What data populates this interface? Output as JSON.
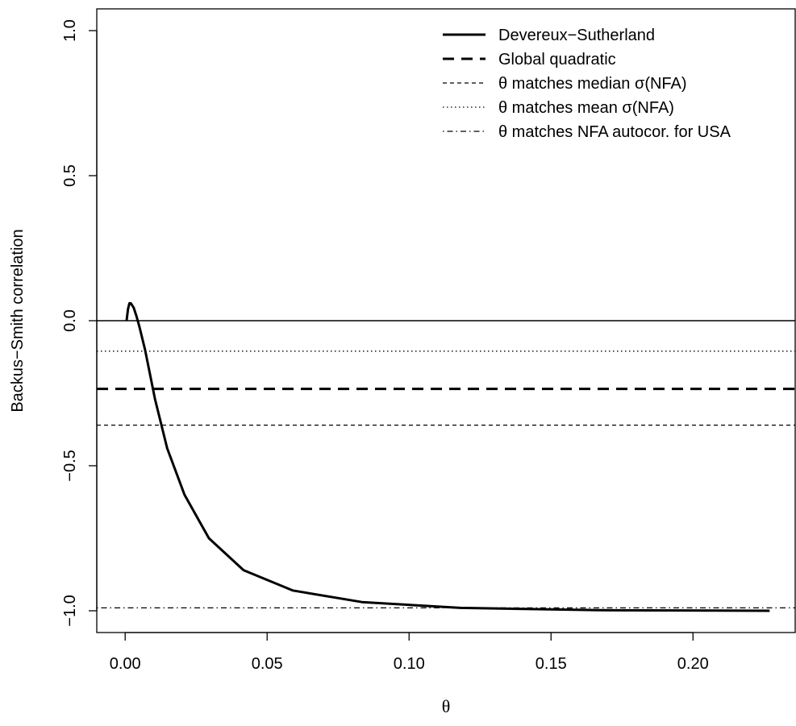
{
  "chart_data": {
    "type": "line",
    "title": "",
    "xlabel": "θ",
    "ylabel": "Backus−Smith correlation",
    "xlim": [
      -0.01,
      0.236
    ],
    "ylim": [
      -1.075,
      1.075
    ],
    "x_ticks": [
      0.0,
      0.05,
      0.1,
      0.15,
      0.2
    ],
    "x_tick_labels": [
      "0.00",
      "0.05",
      "0.10",
      "0.15",
      "0.20"
    ],
    "y_ticks": [
      -1.0,
      -0.5,
      0.0,
      0.5,
      1.0
    ],
    "y_tick_labels": [
      "−1.0",
      "−0.5",
      "0.0",
      "0.5",
      "1.0"
    ],
    "grid": false,
    "legend_position": "top-right",
    "series": [
      {
        "name": "Devereux−Sutherland",
        "style": "solid-thick",
        "color": "#000000",
        "x": [
          0.0005,
          0.001,
          0.0015,
          0.002,
          0.003,
          0.004,
          0.005,
          0.007,
          0.0105,
          0.0148,
          0.0209,
          0.0295,
          0.0417,
          0.059,
          0.0834,
          0.118,
          0.167,
          0.227
        ],
        "y": [
          0.0,
          0.04,
          0.06,
          0.06,
          0.045,
          0.015,
          -0.02,
          -0.1,
          -0.27,
          -0.44,
          -0.6,
          -0.75,
          -0.86,
          -0.93,
          -0.97,
          -0.99,
          -0.998,
          -1.0
        ]
      },
      {
        "name": "Global quadratic",
        "style": "dashed-thick",
        "color": "#000000",
        "hline": -0.235
      },
      {
        "name": "θ matches median σ(NFA)",
        "style": "dashed",
        "color": "#000000",
        "hline": -0.36
      },
      {
        "name": "θ matches mean σ(NFA)",
        "style": "dotted",
        "color": "#000000",
        "hline": -0.105
      },
      {
        "name": "θ matches NFA autocor. for USA",
        "style": "dotdash",
        "color": "#000000",
        "hline": -0.99
      }
    ],
    "reference_lines": [
      {
        "type": "hline",
        "y": 0.0,
        "style": "solid-thin"
      }
    ]
  }
}
